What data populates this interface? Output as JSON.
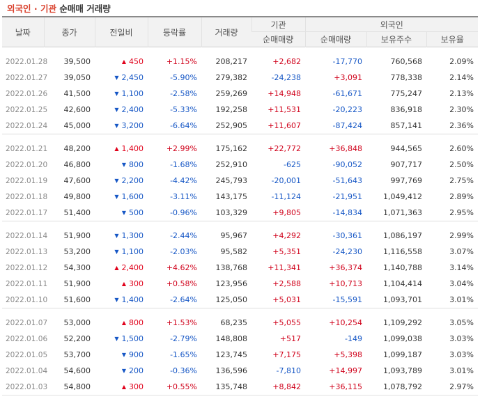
{
  "title": {
    "part1": "외국인",
    "sep": " · ",
    "part2": "기관",
    "part3": "순매매 거래량"
  },
  "headers": {
    "date": "날짜",
    "close": "종가",
    "change": "전일비",
    "rate": "등락률",
    "volume": "거래량",
    "inst_group": "기관",
    "inst_net": "순매매량",
    "foreign_group": "외국인",
    "foreign_net": "순매매량",
    "foreign_hold": "보유주수",
    "foreign_ratio": "보유율"
  },
  "colors": {
    "up": "#e0001a",
    "down": "#1556c5"
  },
  "groups": [
    [
      {
        "date": "2022.01.28",
        "close": "39,500",
        "dir": "up",
        "change": "450",
        "rate": "+1.15%",
        "volume": "208,217",
        "inst": "+2,682",
        "foreign": "-17,770",
        "hold": "760,568",
        "ratio": "2.09%"
      },
      {
        "date": "2022.01.27",
        "close": "39,050",
        "dir": "down",
        "change": "2,450",
        "rate": "-5.90%",
        "volume": "279,382",
        "inst": "-24,238",
        "foreign": "+3,091",
        "hold": "778,338",
        "ratio": "2.14%"
      },
      {
        "date": "2022.01.26",
        "close": "41,500",
        "dir": "down",
        "change": "1,100",
        "rate": "-2.58%",
        "volume": "259,269",
        "inst": "+14,948",
        "foreign": "-61,671",
        "hold": "775,247",
        "ratio": "2.13%"
      },
      {
        "date": "2022.01.25",
        "close": "42,600",
        "dir": "down",
        "change": "2,400",
        "rate": "-5.33%",
        "volume": "192,258",
        "inst": "+11,531",
        "foreign": "-20,223",
        "hold": "836,918",
        "ratio": "2.30%"
      },
      {
        "date": "2022.01.24",
        "close": "45,000",
        "dir": "down",
        "change": "3,200",
        "rate": "-6.64%",
        "volume": "252,905",
        "inst": "+11,607",
        "foreign": "-87,424",
        "hold": "857,141",
        "ratio": "2.36%"
      }
    ],
    [
      {
        "date": "2022.01.21",
        "close": "48,200",
        "dir": "up",
        "change": "1,400",
        "rate": "+2.99%",
        "volume": "175,162",
        "inst": "+22,772",
        "foreign": "+36,848",
        "hold": "944,565",
        "ratio": "2.60%"
      },
      {
        "date": "2022.01.20",
        "close": "46,800",
        "dir": "down",
        "change": "800",
        "rate": "-1.68%",
        "volume": "252,910",
        "inst": "-625",
        "foreign": "-90,052",
        "hold": "907,717",
        "ratio": "2.50%"
      },
      {
        "date": "2022.01.19",
        "close": "47,600",
        "dir": "down",
        "change": "2,200",
        "rate": "-4.42%",
        "volume": "245,793",
        "inst": "-20,001",
        "foreign": "-51,643",
        "hold": "997,769",
        "ratio": "2.75%"
      },
      {
        "date": "2022.01.18",
        "close": "49,800",
        "dir": "down",
        "change": "1,600",
        "rate": "-3.11%",
        "volume": "143,175",
        "inst": "-11,124",
        "foreign": "-21,951",
        "hold": "1,049,412",
        "ratio": "2.89%"
      },
      {
        "date": "2022.01.17",
        "close": "51,400",
        "dir": "down",
        "change": "500",
        "rate": "-0.96%",
        "volume": "103,329",
        "inst": "+9,805",
        "foreign": "-14,834",
        "hold": "1,071,363",
        "ratio": "2.95%"
      }
    ],
    [
      {
        "date": "2022.01.14",
        "close": "51,900",
        "dir": "down",
        "change": "1,300",
        "rate": "-2.44%",
        "volume": "95,967",
        "inst": "+4,292",
        "foreign": "-30,361",
        "hold": "1,086,197",
        "ratio": "2.99%"
      },
      {
        "date": "2022.01.13",
        "close": "53,200",
        "dir": "down",
        "change": "1,100",
        "rate": "-2.03%",
        "volume": "95,582",
        "inst": "+5,351",
        "foreign": "-24,230",
        "hold": "1,116,558",
        "ratio": "3.07%"
      },
      {
        "date": "2022.01.12",
        "close": "54,300",
        "dir": "up",
        "change": "2,400",
        "rate": "+4.62%",
        "volume": "138,768",
        "inst": "+11,341",
        "foreign": "+36,374",
        "hold": "1,140,788",
        "ratio": "3.14%"
      },
      {
        "date": "2022.01.11",
        "close": "51,900",
        "dir": "up",
        "change": "300",
        "rate": "+0.58%",
        "volume": "123,956",
        "inst": "+2,588",
        "foreign": "+10,713",
        "hold": "1,104,414",
        "ratio": "3.04%"
      },
      {
        "date": "2022.01.10",
        "close": "51,600",
        "dir": "down",
        "change": "1,400",
        "rate": "-2.64%",
        "volume": "125,050",
        "inst": "+5,031",
        "foreign": "-15,591",
        "hold": "1,093,701",
        "ratio": "3.01%"
      }
    ],
    [
      {
        "date": "2022.01.07",
        "close": "53,000",
        "dir": "up",
        "change": "800",
        "rate": "+1.53%",
        "volume": "68,235",
        "inst": "+5,055",
        "foreign": "+10,254",
        "hold": "1,109,292",
        "ratio": "3.05%"
      },
      {
        "date": "2022.01.06",
        "close": "52,200",
        "dir": "down",
        "change": "1,500",
        "rate": "-2.79%",
        "volume": "148,808",
        "inst": "+517",
        "foreign": "-149",
        "hold": "1,099,038",
        "ratio": "3.03%"
      },
      {
        "date": "2022.01.05",
        "close": "53,700",
        "dir": "down",
        "change": "900",
        "rate": "-1.65%",
        "volume": "123,745",
        "inst": "+7,175",
        "foreign": "+5,398",
        "hold": "1,099,187",
        "ratio": "3.03%"
      },
      {
        "date": "2022.01.04",
        "close": "54,600",
        "dir": "down",
        "change": "200",
        "rate": "-0.36%",
        "volume": "136,596",
        "inst": "-7,810",
        "foreign": "+14,997",
        "hold": "1,093,789",
        "ratio": "3.01%"
      },
      {
        "date": "2022.01.03",
        "close": "54,800",
        "dir": "up",
        "change": "300",
        "rate": "+0.55%",
        "volume": "135,748",
        "inst": "+8,842",
        "foreign": "+36,115",
        "hold": "1,078,792",
        "ratio": "2.97%"
      }
    ]
  ]
}
